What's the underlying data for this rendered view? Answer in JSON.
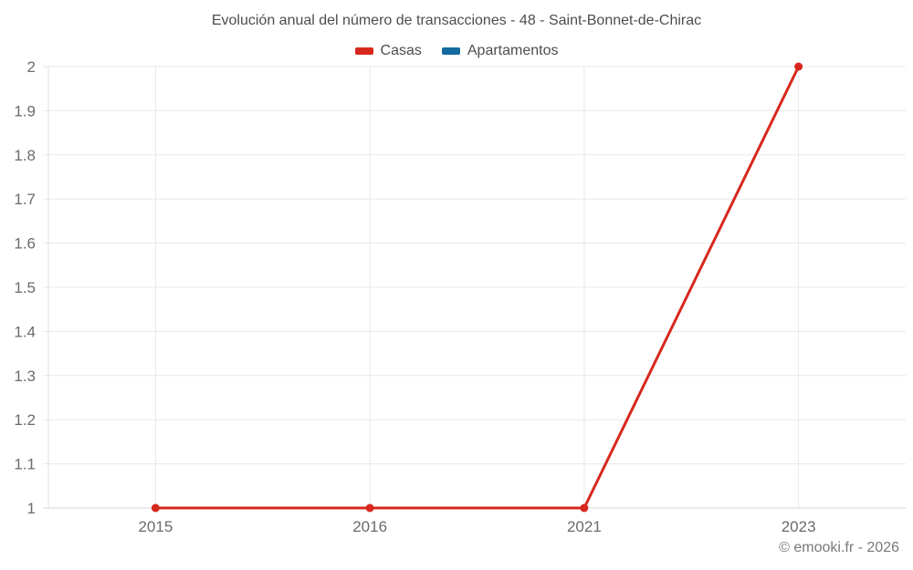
{
  "title": "Evolución anual del número de transacciones - 48 - Saint-Bonnet-de-Chirac",
  "legend": {
    "items": [
      {
        "label": "Casas",
        "color": "#d7281e"
      },
      {
        "label": "Apartamentos",
        "color": "#146ba0"
      }
    ]
  },
  "footer": {
    "text": "© emooki.fr - 2026"
  },
  "colors": {
    "casas": "#d7281e",
    "apartamentos": "#146ba0"
  },
  "chart_data": {
    "type": "line",
    "title": "Evolución anual del número de transacciones - 48 - Saint-Bonnet-de-Chirac",
    "categories": [
      "2015",
      "2016",
      "2021",
      "2023"
    ],
    "series": [
      {
        "name": "Casas",
        "color": "#d7281e",
        "values": [
          1,
          1,
          1,
          2
        ]
      },
      {
        "name": "Apartamentos",
        "color": "#146ba0",
        "values": []
      }
    ],
    "xlabel": "",
    "ylabel": "",
    "ylim": [
      1,
      2
    ],
    "yticks": [
      1,
      1.1,
      1.2,
      1.3,
      1.4,
      1.5,
      1.6,
      1.7,
      1.8,
      1.9,
      2
    ],
    "grid": true,
    "legend_position": "top"
  }
}
